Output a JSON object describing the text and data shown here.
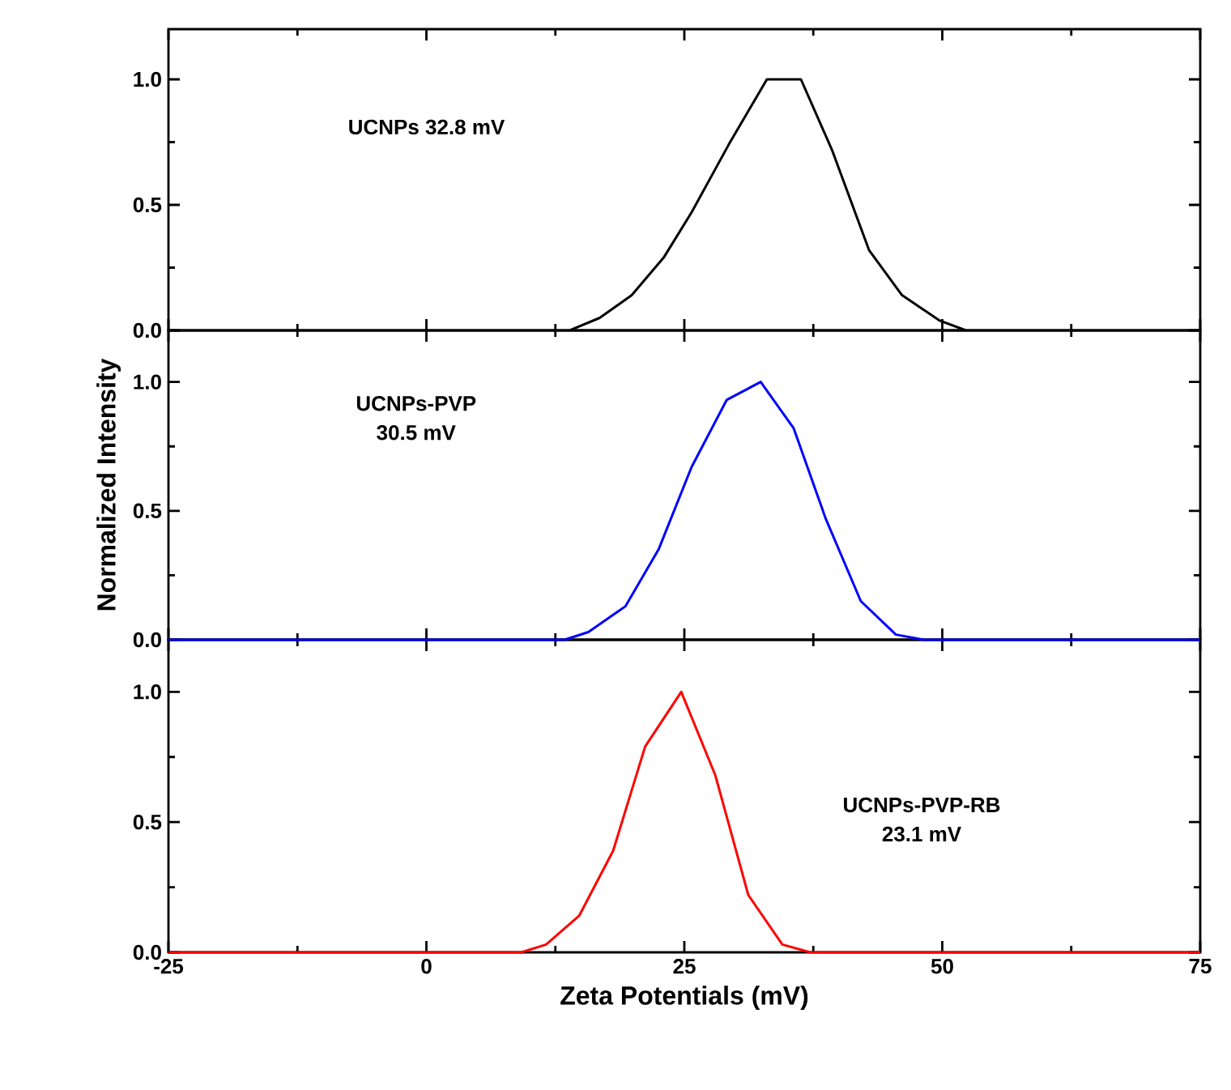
{
  "chart_data": [
    {
      "type": "line",
      "xlim": [
        -25,
        75
      ],
      "xticks": [
        -25,
        0,
        25,
        50,
        75
      ],
      "ylim": [
        0,
        1.2
      ],
      "yticks": [
        {
          "value": 0,
          "label": "0.0"
        },
        {
          "value": 0.5,
          "label": "0.5"
        },
        {
          "value": 1,
          "label": "1.0"
        }
      ],
      "tick_labels": "y",
      "annotations": [
        "UCNPs 32.8 mV"
      ],
      "series": [
        {
          "color": "#000000",
          "x": [
            13.9,
            16.8,
            19.9,
            23.0,
            25.7,
            29.3,
            33.0,
            36.3,
            39.3,
            42.9,
            46.1,
            49.7,
            52.3
          ],
          "values": [
            0,
            0.05,
            0.14,
            0.29,
            0.47,
            0.74,
            1.0,
            1.0,
            0.72,
            0.32,
            0.14,
            0.04,
            0
          ]
        }
      ]
    },
    {
      "type": "line",
      "xlim": [
        -25,
        75
      ],
      "xticks": [
        -25,
        0,
        25,
        50,
        75
      ],
      "ylim": [
        0,
        1.2
      ],
      "yticks": [
        {
          "value": 0,
          "label": "0.0"
        },
        {
          "value": 0.5,
          "label": "0.5"
        },
        {
          "value": 1,
          "label": "1.0"
        }
      ],
      "tick_labels": "y",
      "ylabel": "Normalized Intensity",
      "annotations": [
        "UCNPs-PVP",
        "30.5 mV"
      ],
      "series": [
        {
          "color": "#0000ff",
          "x": [
            -25,
            13.4,
            15.7,
            19.3,
            22.5,
            25.7,
            29.1,
            32.4,
            35.6,
            38.7,
            42.1,
            45.5,
            48.2,
            75
          ],
          "values": [
            0,
            0,
            0.03,
            0.13,
            0.35,
            0.67,
            0.93,
            1.0,
            0.82,
            0.47,
            0.15,
            0.02,
            0,
            0
          ]
        }
      ]
    },
    {
      "type": "line",
      "xlim": [
        -25,
        75
      ],
      "xticks": [
        -25,
        0,
        25,
        50,
        75
      ],
      "ylim": [
        0,
        1.2
      ],
      "yticks": [
        {
          "value": 0,
          "label": "0.0"
        },
        {
          "value": 0.5,
          "label": "0.5"
        },
        {
          "value": 1,
          "label": "1.0"
        }
      ],
      "xlabel": "Zeta Potentials (mV)",
      "annotations": [
        "UCNPs-PVP-RB",
        "23.1 mV"
      ],
      "series": [
        {
          "color": "#ff0000",
          "x": [
            -25,
            9.2,
            11.6,
            14.8,
            18.1,
            21.2,
            24.7,
            28.0,
            31.2,
            34.5,
            37.2,
            75
          ],
          "values": [
            0,
            0,
            0.03,
            0.14,
            0.39,
            0.79,
            1.0,
            0.68,
            0.22,
            0.03,
            0,
            0
          ]
        }
      ]
    }
  ]
}
